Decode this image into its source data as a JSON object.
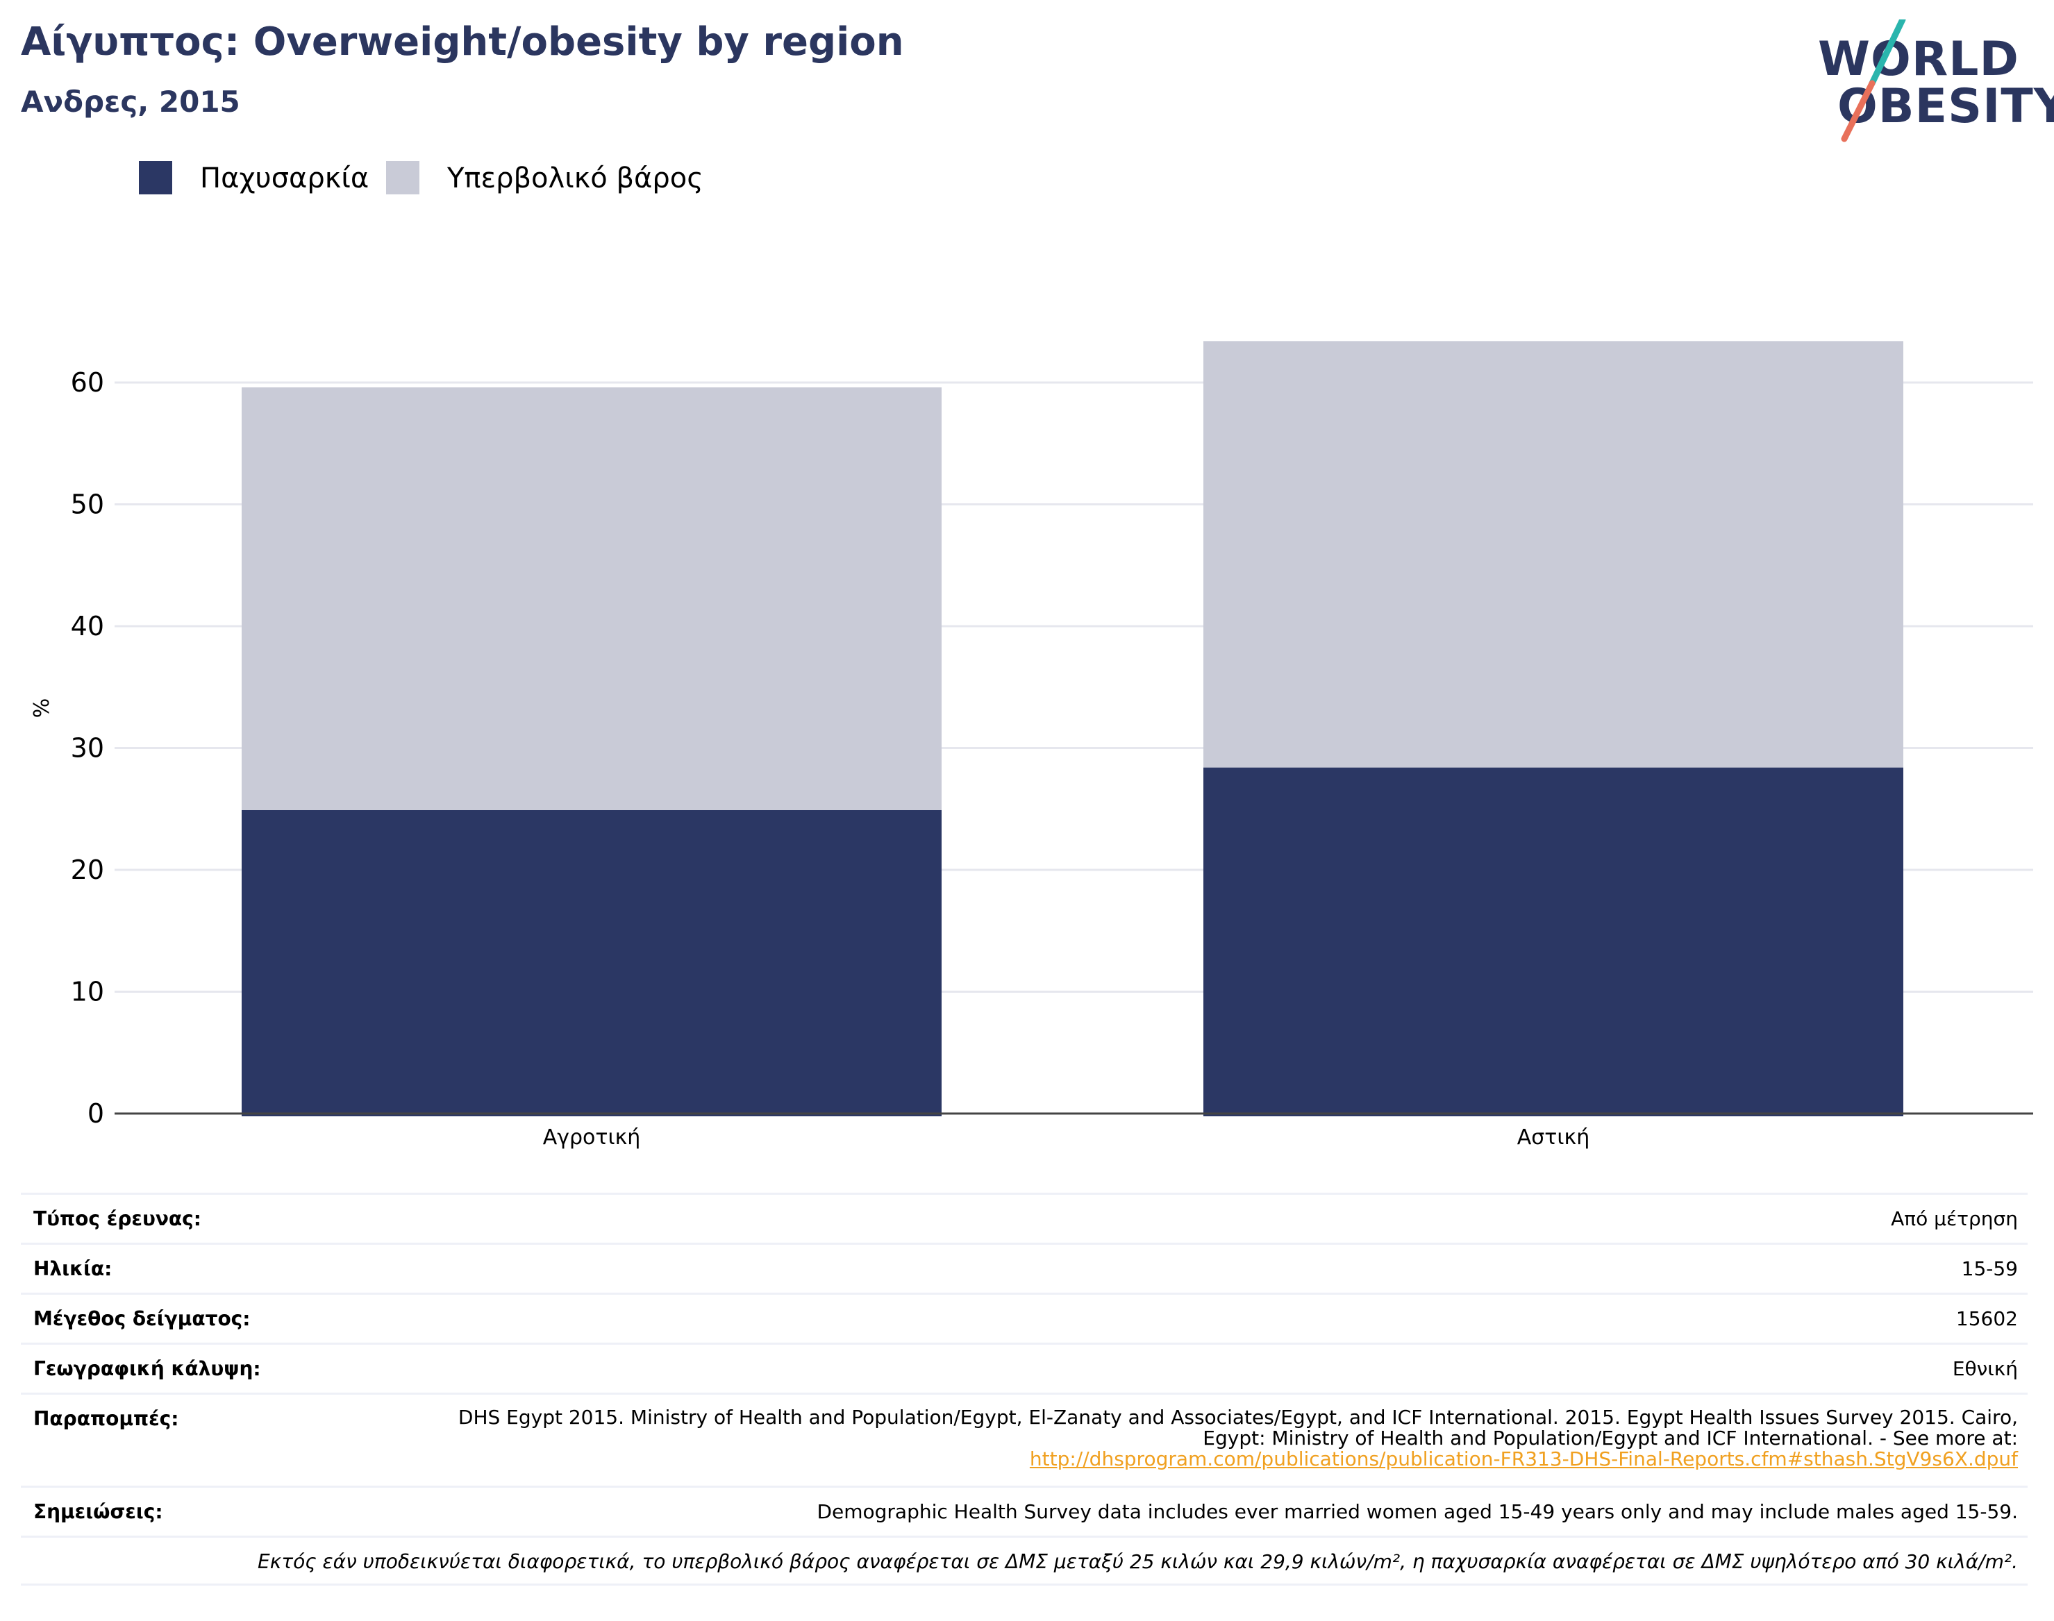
{
  "header": {
    "title": "Αίγυπτος: Overweight/obesity by region",
    "subtitle": "Ανδρες, 2015"
  },
  "logo": {
    "line1": "WORLD",
    "line2": "OBESITY"
  },
  "colors": {
    "obesity": "#2b3764",
    "overweight": "#c9cbd7",
    "title": "#2b365f",
    "link": "#f0a020",
    "logo_teal": "#2ab5ad",
    "logo_coral": "#e8705a"
  },
  "legend": [
    {
      "label": "Παχυσαρκία",
      "color": "#2b3764"
    },
    {
      "label": "Υπερβολικό βάρος",
      "color": "#c9cbd7"
    }
  ],
  "chart_data": {
    "type": "bar",
    "stacked": true,
    "categories": [
      "Αγροτική",
      "Αστική"
    ],
    "series": [
      {
        "name": "Παχυσαρκία",
        "values": [
          24.9,
          28.4
        ]
      },
      {
        "name": "Υπερβολικό βάρος",
        "values": [
          34.7,
          35.0
        ]
      }
    ],
    "ylabel": "%",
    "ylim": [
      0,
      65
    ],
    "yticks": [
      0,
      10,
      20,
      30,
      40,
      50,
      60
    ],
    "grid": true,
    "legend_position": "top-left"
  },
  "meta": {
    "rows": [
      {
        "label": "Τύπος έρευνας:",
        "value": "Από μέτρηση"
      },
      {
        "label": "Ηλικία:",
        "value": "15-59"
      },
      {
        "label": "Μέγεθος δείγματος:",
        "value": "15602"
      },
      {
        "label": "Γεωγραφική κάλυψη:",
        "value": "Εθνική"
      }
    ],
    "references_label": "Παραπομπές:",
    "references_text": "DHS Egypt 2015. Ministry of Health and Population/Egypt, El-Zanaty and Associates/Egypt, and ICF International. 2015. Egypt Health Issues Survey 2015. Cairo, Egypt: Ministry of Health and Population/Egypt and ICF International. - See more at:",
    "references_link": "http://dhsprogram.com/publications/publication-FR313-DHS-Final-Reports.cfm#sthash.StgV9s6X.dpuf",
    "notes_label": "Σημειώσεις:",
    "notes_text": "Demographic Health Survey data includes ever married women aged 15-49 years only and may include males aged 15-59.",
    "footnote": "Εκτός εάν υποδεικνύεται διαφορετικά, το υπερβολικό βάρος αναφέρεται σε ΔΜΣ μεταξύ 25 κιλών και 29,9 κιλών/m², η παχυσαρκία αναφέρεται σε ΔΜΣ υψηλότερο από 30 κιλά/m²."
  }
}
